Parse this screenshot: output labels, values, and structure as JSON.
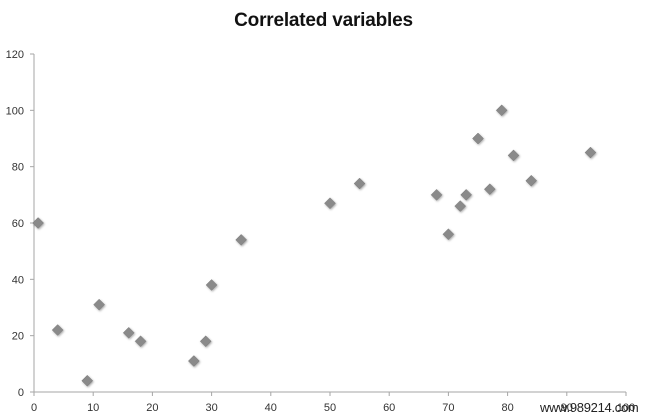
{
  "chart_data": {
    "type": "scatter",
    "title": "Correlated variables",
    "xlabel": "",
    "ylabel": "",
    "xlim": [
      0,
      100
    ],
    "ylim": [
      0,
      120
    ],
    "xticks": [
      0,
      10,
      20,
      30,
      40,
      50,
      60,
      70,
      80,
      90,
      100
    ],
    "yticks": [
      0,
      20,
      40,
      60,
      80,
      100,
      120
    ],
    "grid": false,
    "legend": null,
    "marker": "diamond",
    "marker_color": "#8a8a8a",
    "series": [
      {
        "name": "",
        "points": [
          {
            "x": 0.7,
            "y": 60
          },
          {
            "x": 4,
            "y": 22
          },
          {
            "x": 9,
            "y": 4
          },
          {
            "x": 11,
            "y": 31
          },
          {
            "x": 16,
            "y": 21
          },
          {
            "x": 18,
            "y": 18
          },
          {
            "x": 27,
            "y": 11
          },
          {
            "x": 29,
            "y": 18
          },
          {
            "x": 30,
            "y": 38
          },
          {
            "x": 35,
            "y": 54
          },
          {
            "x": 50,
            "y": 67
          },
          {
            "x": 55,
            "y": 74
          },
          {
            "x": 68,
            "y": 70
          },
          {
            "x": 70,
            "y": 56
          },
          {
            "x": 72,
            "y": 66
          },
          {
            "x": 73,
            "y": 70
          },
          {
            "x": 75,
            "y": 90
          },
          {
            "x": 77,
            "y": 72
          },
          {
            "x": 79,
            "y": 100
          },
          {
            "x": 81,
            "y": 84
          },
          {
            "x": 84,
            "y": 75
          },
          {
            "x": 94,
            "y": 85
          }
        ]
      }
    ]
  },
  "watermark": "www.989214.com"
}
